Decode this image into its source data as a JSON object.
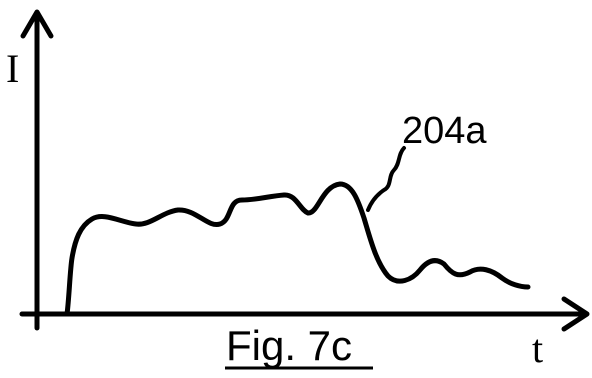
{
  "figure": {
    "y_axis_label": "I",
    "x_axis_label": "t",
    "reference_label": "204a",
    "caption": "Fig. 7c"
  },
  "colors": {
    "ink": "#000000",
    "background": "#ffffff"
  }
}
